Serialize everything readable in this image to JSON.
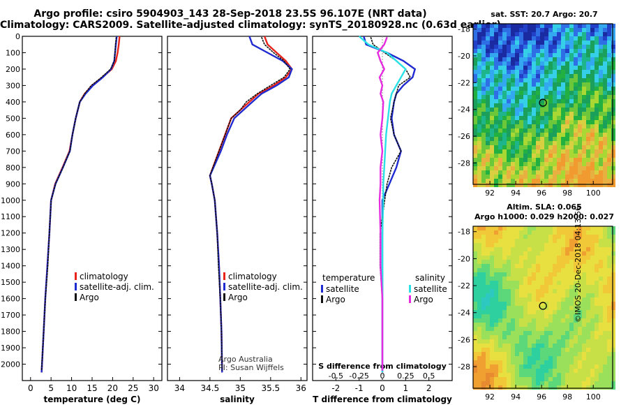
{
  "titles": {
    "line1": "Argo profile: csiro 5904903_143 28-Sep-2018 23.5S 96.107E (NRT data)",
    "line2": "Climatology: CARS2009. Satellite-adjusted climatology: synTS_20180928.nc (0.63d earlier)"
  },
  "colors": {
    "climatology": "#e8231b",
    "satellite": "#1f2bd0",
    "argo": "#111111",
    "sal_satellite": "#29e1e6",
    "sal_argo": "#e62ae0"
  },
  "chart_data": [
    {
      "type": "line",
      "id": "temperature",
      "xlabel": "temperature (deg C)",
      "ylabel": "",
      "xlim": [
        -2,
        32
      ],
      "ylim": [
        0,
        2100
      ],
      "xticks": [
        "0",
        "5",
        "10",
        "15",
        "20",
        "25",
        "30"
      ],
      "yticks": [
        "0",
        "100",
        "200",
        "300",
        "400",
        "500",
        "600",
        "700",
        "800",
        "900",
        "1000",
        "1100",
        "1200",
        "1300",
        "1400",
        "1500",
        "1600",
        "1700",
        "1800",
        "1900",
        "2000"
      ],
      "legend": [
        "climatology",
        "satellite-adj. clim.",
        "Argo"
      ],
      "series": [
        {
          "name": "climatology",
          "color": "climatology",
          "points": [
            [
              21.7,
              0
            ],
            [
              21.5,
              50
            ],
            [
              21.2,
              100
            ],
            [
              20.8,
              150
            ],
            [
              19.8,
              200
            ],
            [
              17.5,
              250
            ],
            [
              15,
              300
            ],
            [
              13.2,
              350
            ],
            [
              12,
              400
            ],
            [
              11,
              500
            ],
            [
              10.2,
              600
            ],
            [
              9.5,
              700
            ],
            [
              7.8,
              800
            ],
            [
              6,
              900
            ],
            [
              5,
              1000
            ],
            [
              4.6,
              1200
            ],
            [
              4.1,
              1400
            ],
            [
              3.6,
              1600
            ],
            [
              3.2,
              1800
            ],
            [
              2.7,
              2050
            ]
          ]
        },
        {
          "name": "satellite-adj. clim.",
          "color": "satellite",
          "points": [
            [
              21,
              0
            ],
            [
              20.8,
              50
            ],
            [
              20.6,
              100
            ],
            [
              20.4,
              150
            ],
            [
              19.6,
              200
            ],
            [
              17.6,
              250
            ],
            [
              15.2,
              300
            ],
            [
              13.4,
              350
            ],
            [
              12,
              400
            ],
            [
              11,
              500
            ],
            [
              10.2,
              600
            ],
            [
              9.6,
              700
            ],
            [
              7.9,
              800
            ],
            [
              6.1,
              900
            ],
            [
              5,
              1000
            ],
            [
              4.6,
              1200
            ],
            [
              4.1,
              1400
            ],
            [
              3.6,
              1600
            ],
            [
              3.2,
              1800
            ],
            [
              2.7,
              2050
            ]
          ]
        },
        {
          "name": "Argo",
          "color": "argo",
          "points": [
            [
              20.9,
              5
            ],
            [
              20.7,
              50
            ],
            [
              20.6,
              100
            ],
            [
              20.4,
              150
            ],
            [
              19.5,
              200
            ],
            [
              17.3,
              250
            ],
            [
              14.8,
              300
            ],
            [
              13.2,
              350
            ],
            [
              12,
              400
            ],
            [
              11,
              500
            ],
            [
              10.2,
              600
            ],
            [
              9.6,
              700
            ],
            [
              7.9,
              800
            ],
            [
              6.1,
              900
            ],
            [
              5,
              1000
            ],
            [
              4.6,
              1200
            ],
            [
              4.2,
              1400
            ],
            [
              3.6,
              1600
            ],
            [
              3.2,
              1800
            ],
            [
              2.7,
              2040
            ]
          ]
        }
      ]
    },
    {
      "type": "line",
      "id": "salinity",
      "xlabel": "salinity",
      "ylabel": "",
      "xlim": [
        33.8,
        36.1
      ],
      "ylim": [
        0,
        2100
      ],
      "xticks": [
        "34",
        "34.5",
        "35",
        "35.5",
        "36"
      ],
      "legend": [
        "climatology",
        "satellite-adj. clim.",
        "Argo"
      ],
      "annotations": [
        "Argo Australia",
        "PI: Susan Wijffels"
      ],
      "series": [
        {
          "name": "climatology",
          "color": "climatology",
          "points": [
            [
              35.4,
              0
            ],
            [
              35.45,
              50
            ],
            [
              35.6,
              100
            ],
            [
              35.75,
              150
            ],
            [
              35.85,
              200
            ],
            [
              35.75,
              250
            ],
            [
              35.55,
              300
            ],
            [
              35.3,
              350
            ],
            [
              35.15,
              400
            ],
            [
              35,
              450
            ],
            [
              34.85,
              500
            ],
            [
              34.75,
              600
            ],
            [
              34.65,
              700
            ],
            [
              34.55,
              800
            ],
            [
              34.5,
              850
            ],
            [
              34.53,
              900
            ],
            [
              34.58,
              1000
            ],
            [
              34.62,
              1200
            ],
            [
              34.65,
              1400
            ],
            [
              34.67,
              1600
            ],
            [
              34.69,
              1800
            ],
            [
              34.7,
              2050
            ]
          ]
        },
        {
          "name": "satellite-adj. clim.",
          "color": "satellite",
          "points": [
            [
              35.15,
              0
            ],
            [
              35.2,
              50
            ],
            [
              35.45,
              100
            ],
            [
              35.7,
              150
            ],
            [
              35.85,
              200
            ],
            [
              35.8,
              250
            ],
            [
              35.6,
              300
            ],
            [
              35.35,
              350
            ],
            [
              35.2,
              400
            ],
            [
              35.05,
              450
            ],
            [
              34.9,
              500
            ],
            [
              34.78,
              600
            ],
            [
              34.68,
              700
            ],
            [
              34.56,
              800
            ],
            [
              34.5,
              850
            ],
            [
              34.53,
              900
            ],
            [
              34.58,
              1000
            ],
            [
              34.62,
              1200
            ],
            [
              34.65,
              1400
            ],
            [
              34.67,
              1600
            ],
            [
              34.69,
              1800
            ],
            [
              34.7,
              2050
            ]
          ]
        },
        {
          "name": "Argo",
          "color": "argo",
          "points": [
            [
              35.35,
              5
            ],
            [
              35.4,
              50
            ],
            [
              35.55,
              100
            ],
            [
              35.72,
              150
            ],
            [
              35.82,
              200
            ],
            [
              35.72,
              250
            ],
            [
              35.5,
              300
            ],
            [
              35.28,
              350
            ],
            [
              35.1,
              400
            ],
            [
              35,
              450
            ],
            [
              34.85,
              500
            ],
            [
              34.75,
              600
            ],
            [
              34.65,
              700
            ],
            [
              34.55,
              800
            ],
            [
              34.5,
              850
            ],
            [
              34.53,
              900
            ],
            [
              34.58,
              1000
            ],
            [
              34.62,
              1200
            ],
            [
              34.64,
              1400
            ],
            [
              34.67,
              1600
            ],
            [
              34.69,
              1800
            ],
            [
              34.7,
              2040
            ]
          ]
        }
      ]
    },
    {
      "type": "line",
      "id": "difference",
      "xlabel": "T difference from climatology",
      "x2label": "S difference from climatology",
      "xlim": [
        -3,
        3
      ],
      "x2lim": [
        -0.75,
        0.75
      ],
      "ylim": [
        0,
        2100
      ],
      "xticks": [
        "-2",
        "-1",
        "0",
        "1",
        "2"
      ],
      "x2ticks": [
        "-0.5",
        "-0.25",
        "0",
        "0.25",
        "0.5"
      ],
      "legend_temperature_header": "temperature",
      "legend_salinity_header": "salinity",
      "legend": [
        "satellite",
        "Argo",
        "satellite",
        "Argo"
      ],
      "series": [
        {
          "name": "satellite",
          "group": "temperature",
          "color": "satellite",
          "points": [
            [
              -0.8,
              0
            ],
            [
              -0.7,
              50
            ],
            [
              0.2,
              100
            ],
            [
              0.9,
              150
            ],
            [
              1.4,
              200
            ],
            [
              1.3,
              250
            ],
            [
              0.9,
              300
            ],
            [
              0.6,
              350
            ],
            [
              0.5,
              400
            ],
            [
              0.4,
              500
            ],
            [
              0.5,
              600
            ],
            [
              0.8,
              700
            ],
            [
              0.6,
              800
            ],
            [
              0.3,
              900
            ],
            [
              0,
              1000
            ],
            [
              0,
              1200
            ],
            [
              0,
              1400
            ],
            [
              0,
              1600
            ],
            [
              0,
              1800
            ],
            [
              0,
              2050
            ]
          ]
        },
        {
          "name": "Argo",
          "group": "temperature",
          "color": "argo",
          "points": [
            [
              -0.5,
              5
            ],
            [
              -0.4,
              50
            ],
            [
              0.1,
              100
            ],
            [
              0.6,
              150
            ],
            [
              1,
              200
            ],
            [
              1.2,
              250
            ],
            [
              0.7,
              300
            ],
            [
              0.6,
              350
            ],
            [
              0.5,
              400
            ],
            [
              0.35,
              500
            ],
            [
              0.5,
              600
            ],
            [
              0.8,
              700
            ],
            [
              0.4,
              800
            ],
            [
              0.2,
              900
            ],
            [
              0.1,
              1000
            ],
            [
              -0.1,
              1200
            ],
            [
              -0.1,
              1400
            ],
            [
              0,
              1600
            ],
            [
              0,
              1800
            ],
            [
              0,
              2040
            ]
          ]
        },
        {
          "name": "satellite",
          "group": "salinity",
          "color": "sal_satellite",
          "points": [
            [
              -0.25,
              0
            ],
            [
              -0.15,
              50
            ],
            [
              0.05,
              100
            ],
            [
              0.15,
              150
            ],
            [
              0.25,
              200
            ],
            [
              0.2,
              250
            ],
            [
              0.15,
              300
            ],
            [
              0.1,
              350
            ],
            [
              0.08,
              400
            ],
            [
              0.06,
              500
            ],
            [
              0.04,
              600
            ],
            [
              0.03,
              700
            ],
            [
              0.02,
              800
            ],
            [
              0.01,
              900
            ],
            [
              0.01,
              1000
            ],
            [
              0,
              1200
            ],
            [
              0,
              1400
            ],
            [
              0,
              1600
            ],
            [
              0,
              1800
            ],
            [
              0,
              2050
            ]
          ]
        },
        {
          "name": "Argo",
          "group": "salinity",
          "color": "sal_argo",
          "points": [
            [
              0.05,
              5
            ],
            [
              0.02,
              50
            ],
            [
              -0.05,
              100
            ],
            [
              -0.02,
              150
            ],
            [
              0.02,
              200
            ],
            [
              -0.03,
              250
            ],
            [
              0.0,
              300
            ],
            [
              -0.02,
              350
            ],
            [
              0.01,
              400
            ],
            [
              0,
              500
            ],
            [
              -0.02,
              600
            ],
            [
              0,
              700
            ],
            [
              -0.02,
              800
            ],
            [
              -0.02,
              900
            ],
            [
              -0.03,
              1000
            ],
            [
              -0.02,
              1200
            ],
            [
              -0.02,
              1400
            ],
            [
              0,
              1600
            ],
            [
              0,
              1800
            ],
            [
              0,
              2040
            ]
          ]
        }
      ]
    }
  ],
  "maps": {
    "sst": {
      "title": "sat. SST: 20.7  Argo: 20.7",
      "xticks": [
        "92",
        "94",
        "96",
        "98",
        "100"
      ],
      "yticks": [
        "-18",
        "-20",
        "-22",
        "-24",
        "-26",
        "-28"
      ]
    },
    "sla": {
      "title1": "Altim. SLA: 0.065",
      "title2": "Argo h1000: 0.029 h2000: 0.027",
      "xticks": [
        "92",
        "94",
        "96",
        "98",
        "100"
      ],
      "yticks": [
        "-18",
        "-20",
        "-22",
        "-24",
        "-26",
        "-28"
      ]
    },
    "argo_position": {
      "lon": 96.107,
      "lat": -23.5
    }
  },
  "credit": "©IMOS 20-Dec-2018 04:13:56"
}
